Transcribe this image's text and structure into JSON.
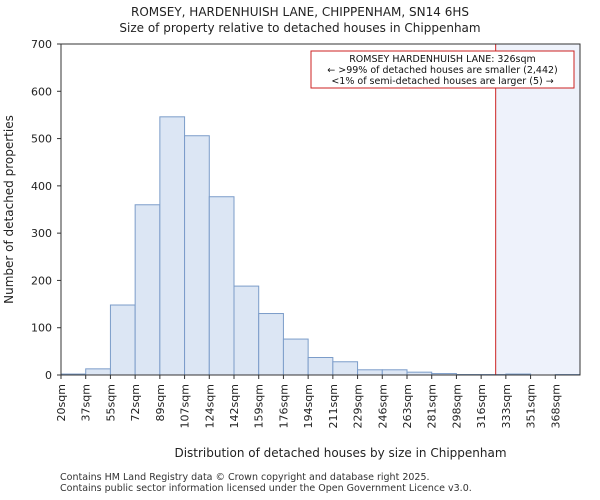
{
  "chart_data": {
    "type": "bar",
    "title": "ROMSEY, HARDENHUISH LANE, CHIPPENHAM, SN14 6HS",
    "subtitle": "Size of property relative to detached houses in Chippenham",
    "xlabel": "Distribution of detached houses by size in Chippenham",
    "ylabel": "Number of detached properties",
    "ylim": [
      0,
      700
    ],
    "yticks": [
      0,
      100,
      200,
      300,
      400,
      500,
      600,
      700
    ],
    "categories": [
      "20sqm",
      "37sqm",
      "55sqm",
      "72sqm",
      "89sqm",
      "107sqm",
      "124sqm",
      "142sqm",
      "159sqm",
      "176sqm",
      "194sqm",
      "211sqm",
      "229sqm",
      "246sqm",
      "263sqm",
      "281sqm",
      "298sqm",
      "316sqm",
      "333sqm",
      "351sqm",
      "368sqm"
    ],
    "values": [
      2,
      13,
      148,
      360,
      546,
      506,
      377,
      188,
      130,
      76,
      37,
      28,
      11,
      11,
      6,
      3,
      1,
      1,
      2,
      0,
      1
    ],
    "marker_value": 326,
    "marker_label": "ROMSEY HARDENHUISH LANE: 326sqm",
    "annotation_lines": [
      "ROMSEY HARDENHUISH LANE: 326sqm",
      "← >99% of detached houses are smaller (2,442)",
      "<1% of semi-detached houses are larger (5) →"
    ],
    "grid": false,
    "colors": {
      "bar_fill": "#dce6f4",
      "bar_edge": "#7b9cc9",
      "marker": "#cc2222",
      "highlight_fill": "#eef2fb"
    }
  },
  "footer": {
    "line1": "Contains HM Land Registry data © Crown copyright and database right 2025.",
    "line2": "Contains public sector information licensed under the Open Government Licence v3.0."
  }
}
